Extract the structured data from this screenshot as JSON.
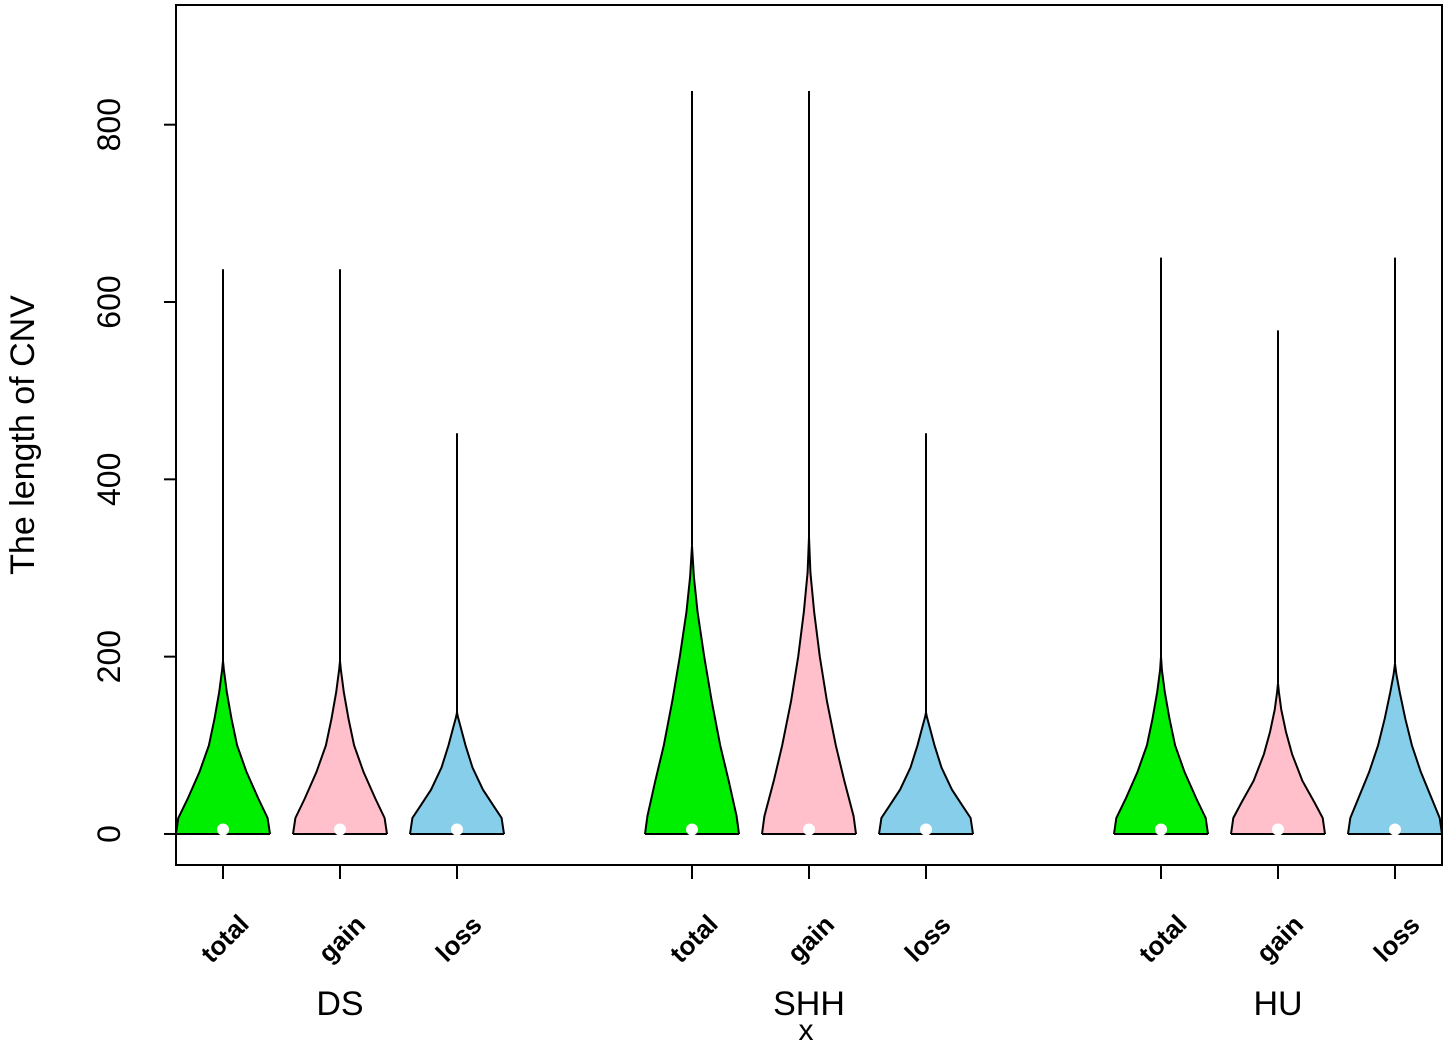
{
  "chart_data": {
    "type": "violin",
    "xlabel": "x",
    "ylabel": "The length of CNV",
    "ylim": [
      -35,
      935
    ],
    "yticks": [
      0,
      200,
      400,
      600,
      800
    ],
    "groups": [
      {
        "name": "DS",
        "violins": [
          {
            "label": "total",
            "color": "#00ee00",
            "median": 5,
            "tip": 195,
            "max": 637,
            "width_profile": [
              [
                0,
                1.0
              ],
              [
                18,
                0.95
              ],
              [
                40,
                0.75
              ],
              [
                70,
                0.5
              ],
              [
                100,
                0.3
              ],
              [
                130,
                0.18
              ],
              [
                160,
                0.08
              ],
              [
                185,
                0.02
              ],
              [
                195,
                0
              ]
            ]
          },
          {
            "label": "gain",
            "color": "#ffc0cb",
            "median": 5,
            "tip": 195,
            "max": 637,
            "width_profile": [
              [
                0,
                1.0
              ],
              [
                18,
                0.95
              ],
              [
                40,
                0.75
              ],
              [
                70,
                0.5
              ],
              [
                100,
                0.3
              ],
              [
                130,
                0.18
              ],
              [
                160,
                0.08
              ],
              [
                185,
                0.02
              ],
              [
                195,
                0
              ]
            ]
          },
          {
            "label": "loss",
            "color": "#87ceeb",
            "median": 5,
            "tip": 137,
            "max": 452,
            "width_profile": [
              [
                0,
                1.0
              ],
              [
                18,
                0.95
              ],
              [
                30,
                0.8
              ],
              [
                50,
                0.55
              ],
              [
                75,
                0.33
              ],
              [
                100,
                0.18
              ],
              [
                120,
                0.08
              ],
              [
                132,
                0.02
              ],
              [
                137,
                0
              ]
            ]
          }
        ]
      },
      {
        "name": "SHH",
        "violins": [
          {
            "label": "total",
            "color": "#00ee00",
            "median": 5,
            "tip": 325,
            "max": 838,
            "width_profile": [
              [
                0,
                1.0
              ],
              [
                20,
                0.95
              ],
              [
                60,
                0.78
              ],
              [
                100,
                0.6
              ],
              [
                150,
                0.42
              ],
              [
                200,
                0.26
              ],
              [
                250,
                0.12
              ],
              [
                290,
                0.04
              ],
              [
                325,
                0
              ]
            ]
          },
          {
            "label": "gain",
            "color": "#ffc0cb",
            "median": 5,
            "tip": 335,
            "max": 838,
            "width_profile": [
              [
                0,
                1.0
              ],
              [
                20,
                0.95
              ],
              [
                60,
                0.75
              ],
              [
                100,
                0.57
              ],
              [
                150,
                0.38
              ],
              [
                200,
                0.23
              ],
              [
                250,
                0.11
              ],
              [
                295,
                0.03
              ],
              [
                335,
                0
              ]
            ]
          },
          {
            "label": "loss",
            "color": "#87ceeb",
            "median": 5,
            "tip": 137,
            "max": 452,
            "width_profile": [
              [
                0,
                1.0
              ],
              [
                18,
                0.95
              ],
              [
                30,
                0.8
              ],
              [
                50,
                0.55
              ],
              [
                75,
                0.33
              ],
              [
                100,
                0.18
              ],
              [
                120,
                0.08
              ],
              [
                132,
                0.02
              ],
              [
                137,
                0
              ]
            ]
          }
        ]
      },
      {
        "name": "HU",
        "violins": [
          {
            "label": "total",
            "color": "#00ee00",
            "median": 5,
            "tip": 200,
            "max": 650,
            "width_profile": [
              [
                0,
                1.0
              ],
              [
                18,
                0.95
              ],
              [
                40,
                0.75
              ],
              [
                70,
                0.5
              ],
              [
                100,
                0.3
              ],
              [
                130,
                0.18
              ],
              [
                160,
                0.08
              ],
              [
                185,
                0.02
              ],
              [
                200,
                0
              ]
            ]
          },
          {
            "label": "gain",
            "color": "#ffc0cb",
            "median": 5,
            "tip": 170,
            "max": 568,
            "width_profile": [
              [
                0,
                1.0
              ],
              [
                18,
                0.95
              ],
              [
                35,
                0.78
              ],
              [
                60,
                0.52
              ],
              [
                90,
                0.3
              ],
              [
                115,
                0.17
              ],
              [
                140,
                0.07
              ],
              [
                160,
                0.02
              ],
              [
                170,
                0
              ]
            ]
          },
          {
            "label": "loss",
            "color": "#87ceeb",
            "median": 5,
            "tip": 192,
            "max": 650,
            "width_profile": [
              [
                0,
                1.0
              ],
              [
                18,
                0.95
              ],
              [
                40,
                0.78
              ],
              [
                70,
                0.55
              ],
              [
                100,
                0.36
              ],
              [
                130,
                0.22
              ],
              [
                160,
                0.1
              ],
              [
                180,
                0.03
              ],
              [
                192,
                0
              ]
            ]
          }
        ]
      }
    ],
    "legend": "none",
    "grid": false
  }
}
